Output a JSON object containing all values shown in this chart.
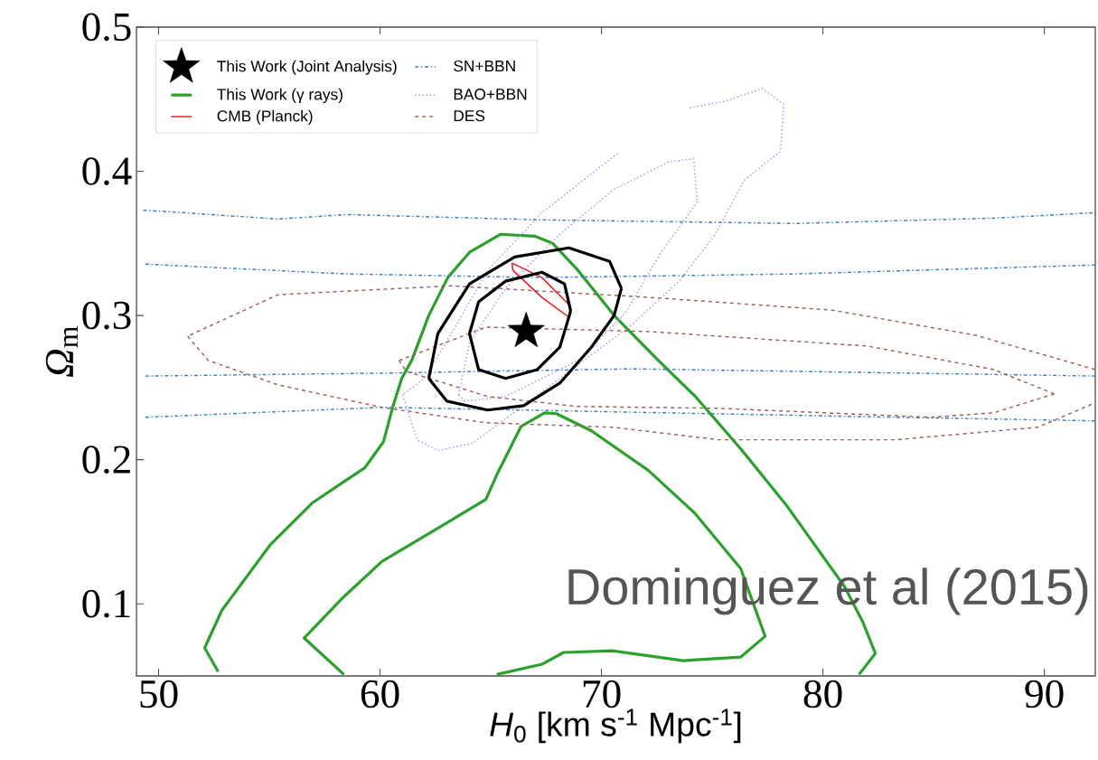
{
  "chart_data": {
    "type": "line",
    "xlabel": "*H*$_{0}$ [km s$^{-1}$ Mpc$^{-1}$]",
    "ylabel": "*Ω*$_{m}$",
    "xlim": [
      49,
      92.3
    ],
    "ylim": [
      0.05,
      0.5
    ],
    "xticks": [
      50,
      60,
      70,
      80,
      90
    ],
    "yticks": [
      0.1,
      0.2,
      0.3,
      0.4,
      0.5
    ],
    "legend": "top left",
    "annotations": [
      "Dominguez et al (2015)"
    ],
    "series": [
      {
        "name": "This Work (Joint Analysis)",
        "type": "scatter",
        "marker": "star",
        "color": "#000000",
        "x": [
          66.6
        ],
        "values": [
          0.289
        ]
      },
      {
        "name": "This Work (γ rays)",
        "line_style": "solid",
        "color": "#2ca02c",
        "x": [
          52.69,
          52.08,
          52.86,
          55.06,
          56.94,
          59.31,
          60.16,
          60.57,
          60.98,
          61.43,
          62.2,
          63.06,
          64.04,
          65.43,
          66.98,
          67.8,
          68.94,
          70.57,
          72.57,
          74.24,
          76.29,
          78.33,
          80.98,
          81.8,
          82.37,
          81.63,
          null,
          58.37,
          56.57,
          58.37,
          60.08,
          63.22,
          64.78,
          65.27,
          66.37,
          67.43,
          67.96,
          69.55,
          72.12,
          74.2,
          76.29,
          77.39,
          76.29,
          73.71,
          70.49,
          68.29,
          67.31,
          65.27
        ],
        "values": [
          0.053,
          0.0694,
          0.0956,
          0.1413,
          0.17,
          0.1944,
          0.2125,
          0.2363,
          0.2563,
          0.2688,
          0.3,
          0.3263,
          0.3438,
          0.3563,
          0.355,
          0.35,
          0.3313,
          0.3,
          0.2688,
          0.2438,
          0.2075,
          0.1688,
          0.1119,
          0.0875,
          0.0656,
          0.051,
          null,
          0.051,
          0.0763,
          0.105,
          0.1294,
          0.1581,
          0.1725,
          0.1894,
          0.2231,
          0.2325,
          0.2319,
          0.22,
          0.1925,
          0.1631,
          0.1244,
          0.0775,
          0.0631,
          0.0606,
          0.0675,
          0.0663,
          0.0581,
          0.051
        ]
      },
      {
        "name": "CMB (Planck)",
        "line_style": "solid",
        "color": "#e41a1c",
        "x": [
          65.96,
          67.31,
          68.61
        ],
        "values": [
          0.3363,
          0.3263,
          0.3063
        ]
      },
      {
        "name": "SN+BBN",
        "line_style": "dashdot",
        "color": "#3a7fc1",
        "x": [
          49.3,
          55.39,
          58.53,
          67.3,
          78.73,
          87.71,
          92.3,
          null,
          49.4,
          58.5,
          67.3,
          78.7,
          92.3,
          null,
          49.4,
          60.0,
          71.4,
          92.3,
          null,
          49.4,
          60.1,
          83.3,
          92.3
        ],
        "values": [
          0.3731,
          0.3669,
          0.37,
          0.3663,
          0.3638,
          0.3675,
          0.3713,
          null,
          0.3356,
          0.3288,
          0.3263,
          0.3288,
          0.335,
          null,
          0.258,
          0.26,
          0.263,
          0.258,
          null,
          0.2294,
          0.2363,
          0.2294,
          0.2269
        ]
      },
      {
        "name": "BAO+BBN",
        "line_style": "dotted",
        "color": "#b18ee0",
        "x": [
          70.73,
          67.31,
          64.86,
          63.22,
          62.0,
          61.02
        ],
        "values": [
          0.4125,
          0.3713,
          0.3313,
          0.2875,
          0.2563,
          0.245
        ]
      },
      {
        "name": "DES",
        "line_style": "dashed",
        "color": "#a0605a",
        "x": [
          92.29,
          86.9,
          80.37,
          72.2,
          63.22,
          55.39,
          51.31
        ],
        "values": [
          0.2625,
          0.2863,
          0.3038,
          0.3125,
          0.3206,
          0.3144,
          0.2856
        ]
      },
      {
        "line_style": "solid",
        "color": "#e41a1c",
        "x": [
          68.61,
          68.53,
          67.31,
          66.0,
          65.96
        ],
        "values": [
          0.3063,
          0.2988,
          0.3125,
          0.3313,
          0.3363
        ]
      },
      {
        "line_style": "dotted",
        "color": "#b18ee0",
        "x": [
          61.02,
          61.67,
          62.61,
          64.16,
          66.04,
          68.12,
          71.39,
          73.51,
          75.14,
          76.45,
          78.08,
          78.24
        ],
        "values": [
          0.245,
          0.2138,
          0.2063,
          0.2113,
          0.2325,
          0.2563,
          0.2938,
          0.3238,
          0.3563,
          0.3938,
          0.4138,
          0.4463
        ]
      },
      {
        "line_style": "dotted",
        "color": "#b18ee0",
        "x": [
          78.24,
          77.27,
          75.63,
          73.92
        ],
        "values": [
          0.4463,
          0.4575,
          0.4488,
          0.4438
        ]
      },
      {
        "line_style": "dotted",
        "color": "#b18ee0",
        "x": [
          63.55,
          64.04,
          65.67,
          68.12,
          70.57,
          73.02,
          74.16,
          74.33
        ],
        "values": [
          0.245,
          0.2813,
          0.3188,
          0.3563,
          0.3875,
          0.4063,
          0.4088,
          0.3788
        ]
      },
      {
        "line_style": "dotted",
        "color": "#b18ee0",
        "x": [
          74.33,
          72.69,
          71.06,
          68.94,
          65.67,
          63.84,
          63.55
        ],
        "values": [
          0.3788,
          0.3438,
          0.3013,
          0.2688,
          0.2438,
          0.2406,
          0.245
        ]
      },
      {
        "line_style": "dashed",
        "color": "#a0605a",
        "x": [
          51.31,
          52.24,
          55.39,
          60.08,
          64.78,
          70.49,
          75.31,
          83.31,
          89.71,
          92.29
        ],
        "values": [
          0.2856,
          0.2688,
          0.2519,
          0.2363,
          0.2256,
          0.2225,
          0.2138,
          0.2138,
          0.2225,
          0.2394
        ]
      },
      {
        "line_style": "dashed",
        "color": "#a0605a",
        "x": [
          60.86,
          64.78,
          72.2,
          82.0,
          87.71,
          90.45
        ],
        "values": [
          0.2688,
          0.2919,
          0.2888,
          0.2788,
          0.2625,
          0.2456
        ]
      },
      {
        "line_style": "dashed",
        "color": "#a0605a",
        "x": [
          90.45,
          87.71,
          84.9,
          75.31,
          68.9,
          64.86,
          61.18,
          60.86
        ],
        "values": [
          0.2456,
          0.2325,
          0.2294,
          0.2356,
          0.2369,
          0.2438,
          0.2613,
          0.2688
        ]
      },
      {
        "line_style": "solid",
        "color": "#000000",
        "x": [
          64.04,
          64.45,
          65.67,
          67.31,
          68.33,
          68.61
        ],
        "values": [
          0.2875,
          0.3094,
          0.3238,
          0.33,
          0.3219,
          0.3031
        ]
      },
      {
        "line_style": "solid",
        "color": "#000000",
        "x": [
          68.61,
          68.12,
          67.1,
          65.67,
          64.45,
          64.04
        ],
        "values": [
          0.3031,
          0.2781,
          0.2625,
          0.2563,
          0.2625,
          0.2875
        ]
      },
      {
        "line_style": "solid",
        "color": "#000000",
        "x": [
          62.2,
          62.61,
          64.04,
          66.08,
          68.53,
          70.37,
          70.9
        ],
        "values": [
          0.2563,
          0.2875,
          0.3219,
          0.3406,
          0.3469,
          0.3375,
          0.3188
        ]
      },
      {
        "line_style": "solid",
        "color": "#000000",
        "x": [
          70.9,
          70.57,
          69.55,
          68.12,
          66.49,
          64.86,
          63.02,
          62.2
        ],
        "values": [
          0.3188,
          0.3,
          0.2781,
          0.2531,
          0.2375,
          0.2344,
          0.2406,
          0.2563
        ]
      }
    ]
  }
}
